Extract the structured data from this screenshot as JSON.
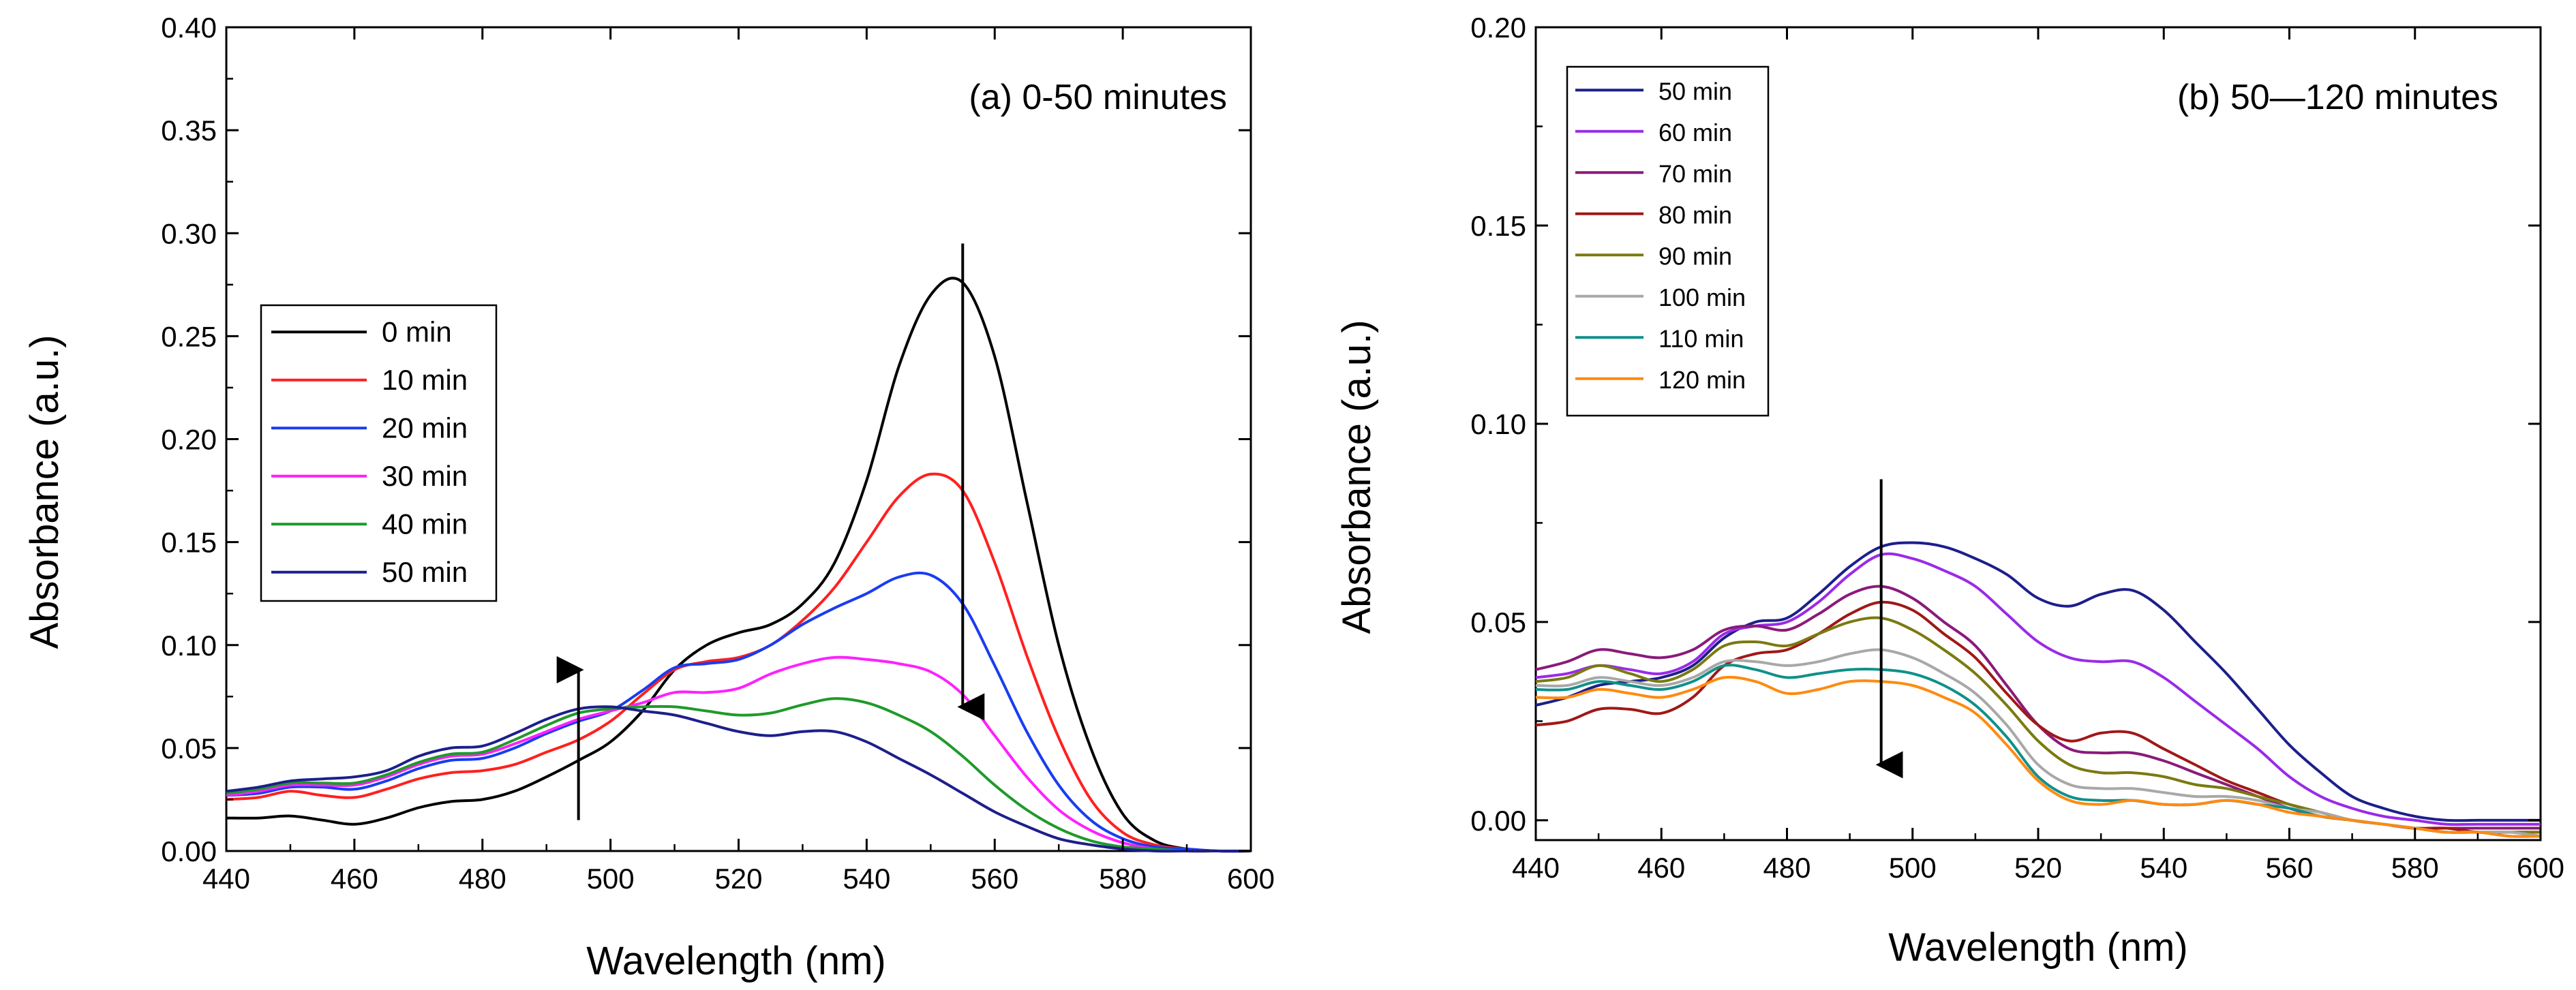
{
  "chart_data": [
    {
      "type": "line",
      "title": "(a) 0-50 minutes",
      "xlabel": "Wavelength (nm)",
      "ylabel": "Absorbance (a.u.)",
      "xlim": [
        440,
        600
      ],
      "ylim": [
        0,
        0.4
      ],
      "xticks": [
        440,
        460,
        480,
        500,
        520,
        540,
        560,
        580,
        600
      ],
      "yticks": [
        "0.00",
        "0.05",
        "0.10",
        "0.15",
        "0.20",
        "0.25",
        "0.30",
        "0.35",
        "0.40"
      ],
      "legend_position": "middle-left",
      "arrows": [
        {
          "x": 495,
          "from": 0.015,
          "to": 0.088,
          "direction": "up"
        },
        {
          "x": 555,
          "from": 0.295,
          "to": 0.07,
          "direction": "down"
        }
      ],
      "x": [
        440,
        445,
        450,
        455,
        460,
        465,
        470,
        475,
        480,
        485,
        490,
        495,
        500,
        505,
        510,
        515,
        520,
        525,
        530,
        535,
        540,
        545,
        550,
        555,
        560,
        565,
        570,
        575,
        580,
        585,
        590,
        595,
        600
      ],
      "series": [
        {
          "name": "0 min",
          "color": "#000000",
          "values": [
            0.016,
            0.016,
            0.017,
            0.015,
            0.013,
            0.016,
            0.021,
            0.024,
            0.025,
            0.029,
            0.036,
            0.044,
            0.053,
            0.068,
            0.088,
            0.1,
            0.106,
            0.11,
            0.12,
            0.14,
            0.18,
            0.235,
            0.27,
            0.276,
            0.24,
            0.17,
            0.1,
            0.05,
            0.018,
            0.005,
            0.001,
            0.0,
            0.0
          ]
        },
        {
          "name": "10 min",
          "color": "#ff2020",
          "values": [
            0.025,
            0.026,
            0.029,
            0.027,
            0.026,
            0.03,
            0.035,
            0.038,
            0.039,
            0.042,
            0.048,
            0.054,
            0.063,
            0.076,
            0.088,
            0.092,
            0.094,
            0.1,
            0.112,
            0.128,
            0.15,
            0.172,
            0.183,
            0.175,
            0.14,
            0.095,
            0.055,
            0.025,
            0.009,
            0.003,
            0.001,
            0.0,
            0.0
          ]
        },
        {
          "name": "20 min",
          "color": "#1a3cf0",
          "values": [
            0.027,
            0.028,
            0.031,
            0.031,
            0.03,
            0.034,
            0.04,
            0.044,
            0.045,
            0.05,
            0.057,
            0.063,
            0.068,
            0.078,
            0.089,
            0.091,
            0.093,
            0.1,
            0.11,
            0.118,
            0.125,
            0.133,
            0.134,
            0.12,
            0.09,
            0.058,
            0.032,
            0.015,
            0.006,
            0.002,
            0.001,
            0.0,
            0.0
          ]
        },
        {
          "name": "30 min",
          "color": "#ff20ff",
          "values": [
            0.027,
            0.029,
            0.032,
            0.032,
            0.032,
            0.036,
            0.042,
            0.046,
            0.047,
            0.052,
            0.058,
            0.064,
            0.068,
            0.072,
            0.077,
            0.077,
            0.079,
            0.086,
            0.091,
            0.094,
            0.093,
            0.091,
            0.087,
            0.076,
            0.056,
            0.036,
            0.02,
            0.01,
            0.004,
            0.001,
            0.0,
            0.0,
            0.0
          ]
        },
        {
          "name": "40 min",
          "color": "#1f9a2a",
          "values": [
            0.028,
            0.03,
            0.033,
            0.033,
            0.033,
            0.037,
            0.043,
            0.047,
            0.048,
            0.054,
            0.061,
            0.067,
            0.069,
            0.07,
            0.07,
            0.068,
            0.066,
            0.067,
            0.071,
            0.074,
            0.072,
            0.066,
            0.058,
            0.046,
            0.032,
            0.02,
            0.011,
            0.005,
            0.002,
            0.001,
            0.0,
            0.0,
            0.0
          ]
        },
        {
          "name": "50 min",
          "color": "#1c1f8a",
          "values": [
            0.029,
            0.031,
            0.034,
            0.035,
            0.036,
            0.039,
            0.046,
            0.05,
            0.051,
            0.057,
            0.064,
            0.069,
            0.07,
            0.068,
            0.066,
            0.062,
            0.058,
            0.056,
            0.058,
            0.058,
            0.053,
            0.045,
            0.037,
            0.028,
            0.019,
            0.012,
            0.006,
            0.003,
            0.001,
            0.0,
            0.0,
            0.0,
            0.0
          ]
        }
      ]
    },
    {
      "type": "line",
      "title": "(b) 50—120 minutes",
      "xlabel": "Wavelength (nm)",
      "ylabel": "Absorbance (a.u.)",
      "xlim": [
        440,
        600
      ],
      "ylim": [
        -0.005,
        0.2
      ],
      "xticks": [
        440,
        460,
        480,
        500,
        520,
        540,
        560,
        580,
        600
      ],
      "yticks": [
        "0.00",
        "0.05",
        "0.10",
        "0.15",
        "0.20"
      ],
      "legend_position": "top-left",
      "arrows": [
        {
          "x": 495,
          "from": 0.086,
          "to": 0.014,
          "direction": "down"
        }
      ],
      "x": [
        440,
        445,
        450,
        455,
        460,
        465,
        470,
        475,
        480,
        485,
        490,
        495,
        500,
        505,
        510,
        515,
        520,
        525,
        530,
        535,
        540,
        545,
        550,
        555,
        560,
        565,
        570,
        575,
        580,
        585,
        590,
        595,
        600
      ],
      "series": [
        {
          "name": "50 min",
          "color": "#1c1f8a",
          "values": [
            0.029,
            0.031,
            0.034,
            0.035,
            0.036,
            0.039,
            0.046,
            0.05,
            0.051,
            0.057,
            0.064,
            0.069,
            0.07,
            0.069,
            0.066,
            0.062,
            0.056,
            0.054,
            0.057,
            0.058,
            0.053,
            0.045,
            0.037,
            0.028,
            0.019,
            0.012,
            0.006,
            0.003,
            0.001,
            0.0,
            0.0,
            0.0,
            0.0
          ]
        },
        {
          "name": "60 min",
          "color": "#9a2ae8",
          "values": [
            0.036,
            0.037,
            0.039,
            0.038,
            0.037,
            0.04,
            0.047,
            0.049,
            0.05,
            0.055,
            0.062,
            0.067,
            0.066,
            0.063,
            0.059,
            0.052,
            0.045,
            0.041,
            0.04,
            0.04,
            0.036,
            0.03,
            0.024,
            0.018,
            0.011,
            0.006,
            0.003,
            0.001,
            0.0,
            -0.001,
            -0.001,
            -0.001,
            -0.001
          ]
        },
        {
          "name": "70 min",
          "color": "#8a1a7a",
          "values": [
            0.038,
            0.04,
            0.043,
            0.042,
            0.041,
            0.043,
            0.048,
            0.049,
            0.048,
            0.052,
            0.057,
            0.059,
            0.056,
            0.05,
            0.044,
            0.034,
            0.024,
            0.018,
            0.017,
            0.017,
            0.015,
            0.012,
            0.009,
            0.006,
            0.003,
            0.001,
            0.0,
            -0.001,
            -0.002,
            -0.002,
            -0.002,
            -0.002,
            -0.002
          ]
        },
        {
          "name": "80 min",
          "color": "#a01818",
          "values": [
            0.024,
            0.025,
            0.028,
            0.028,
            0.027,
            0.031,
            0.039,
            0.042,
            0.043,
            0.047,
            0.052,
            0.055,
            0.053,
            0.047,
            0.041,
            0.032,
            0.024,
            0.02,
            0.022,
            0.022,
            0.018,
            0.014,
            0.01,
            0.007,
            0.004,
            0.002,
            0.0,
            -0.001,
            -0.002,
            -0.002,
            -0.003,
            -0.003,
            -0.003
          ]
        },
        {
          "name": "90 min",
          "color": "#7a7a10",
          "values": [
            0.035,
            0.036,
            0.039,
            0.037,
            0.035,
            0.038,
            0.044,
            0.045,
            0.044,
            0.047,
            0.05,
            0.051,
            0.048,
            0.043,
            0.037,
            0.029,
            0.02,
            0.014,
            0.012,
            0.012,
            0.011,
            0.009,
            0.008,
            0.006,
            0.004,
            0.002,
            0.0,
            -0.001,
            -0.002,
            -0.003,
            -0.003,
            -0.003,
            -0.003
          ]
        },
        {
          "name": "100 min",
          "color": "#a8a8a8",
          "values": [
            0.034,
            0.034,
            0.036,
            0.035,
            0.034,
            0.036,
            0.04,
            0.04,
            0.039,
            0.04,
            0.042,
            0.043,
            0.041,
            0.037,
            0.032,
            0.024,
            0.014,
            0.009,
            0.008,
            0.008,
            0.007,
            0.006,
            0.006,
            0.005,
            0.003,
            0.002,
            0.0,
            -0.001,
            -0.002,
            -0.003,
            -0.003,
            -0.003,
            -0.004
          ]
        },
        {
          "name": "110 min",
          "color": "#10908a",
          "values": [
            0.033,
            0.033,
            0.035,
            0.034,
            0.033,
            0.035,
            0.039,
            0.038,
            0.036,
            0.037,
            0.038,
            0.038,
            0.037,
            0.034,
            0.029,
            0.021,
            0.011,
            0.006,
            0.005,
            0.005,
            0.004,
            0.004,
            0.005,
            0.004,
            0.003,
            0.001,
            0.0,
            -0.001,
            -0.002,
            -0.003,
            -0.003,
            -0.004,
            -0.004
          ]
        },
        {
          "name": "120 min",
          "color": "#ff8a10",
          "values": [
            0.031,
            0.031,
            0.033,
            0.032,
            0.031,
            0.033,
            0.036,
            0.035,
            0.032,
            0.033,
            0.035,
            0.035,
            0.034,
            0.031,
            0.027,
            0.019,
            0.01,
            0.005,
            0.004,
            0.005,
            0.004,
            0.004,
            0.005,
            0.004,
            0.002,
            0.001,
            0.0,
            -0.001,
            -0.002,
            -0.003,
            -0.003,
            -0.004,
            -0.004
          ]
        }
      ]
    }
  ]
}
